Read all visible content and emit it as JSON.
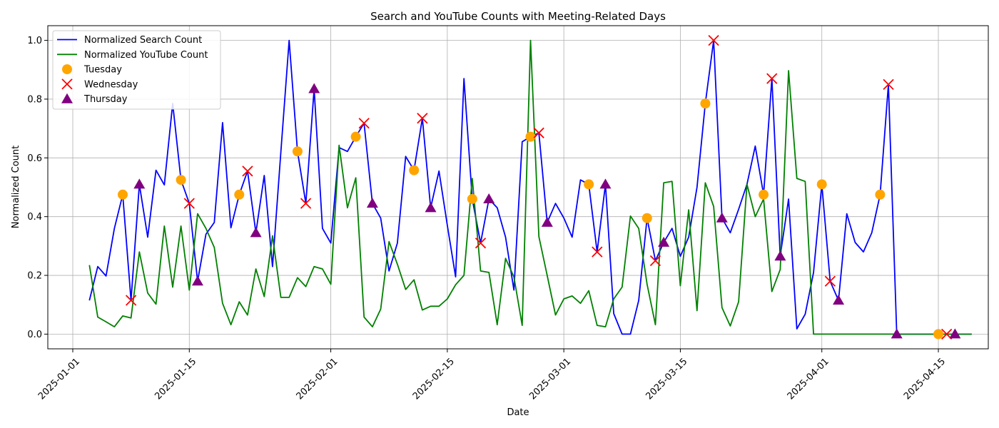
{
  "chart_data": {
    "type": "line",
    "title": "Search and YouTube Counts with Meeting-Related Days",
    "xlabel": "Date",
    "ylabel": "Normalized Count",
    "x_range": [
      "2024-12-29",
      "2025-04-21"
    ],
    "ylim": [
      -0.05,
      1.05
    ],
    "grid": true,
    "legend_position": "top-left",
    "x_ticks": [
      "2025-01-01",
      "2025-01-15",
      "2025-02-01",
      "2025-02-15",
      "2025-03-01",
      "2025-03-15",
      "2025-04-01",
      "2025-04-15"
    ],
    "y_ticks": [
      0.0,
      0.2,
      0.4,
      0.6,
      0.8,
      1.0
    ],
    "y_tick_labels": [
      "0.0",
      "0.2",
      "0.4",
      "0.6",
      "0.8",
      "1.0"
    ],
    "series": [
      {
        "name": "Normalized Search Count",
        "kind": "line",
        "color": "#0000ff",
        "start_date": "2025-01-03",
        "values": [
          0.115,
          0.23,
          0.198,
          0.36,
          0.475,
          0.115,
          0.51,
          0.33,
          0.558,
          0.508,
          0.785,
          0.525,
          0.445,
          0.18,
          0.34,
          0.38,
          0.72,
          0.362,
          0.475,
          0.555,
          0.345,
          0.54,
          0.23,
          0.62,
          1.0,
          0.622,
          0.445,
          0.835,
          0.36,
          0.31,
          0.635,
          0.622,
          0.672,
          0.718,
          0.445,
          0.395,
          0.215,
          0.31,
          0.605,
          0.558,
          0.735,
          0.43,
          0.555,
          0.37,
          0.195,
          0.87,
          0.46,
          0.31,
          0.46,
          0.43,
          0.33,
          0.15,
          0.655,
          0.672,
          0.685,
          0.38,
          0.445,
          0.395,
          0.33,
          0.525,
          0.51,
          0.28,
          0.51,
          0.07,
          0.0,
          0.0,
          0.115,
          0.395,
          0.25,
          0.312,
          0.36,
          0.265,
          0.33,
          0.5,
          0.785,
          1.0,
          0.395,
          0.345,
          0.425,
          0.51,
          0.64,
          0.475,
          0.87,
          0.265,
          0.46,
          0.018,
          0.068,
          0.21,
          0.51,
          0.18,
          0.115,
          0.41,
          0.312,
          0.28,
          0.345,
          0.475,
          0.85,
          0.0,
          0.0,
          0.0,
          0.0,
          0.0,
          0.0,
          0.0,
          0.0,
          0.0,
          0.0
        ]
      },
      {
        "name": "Normalized YouTube Count",
        "kind": "line",
        "color": "#008000",
        "start_date": "2025-01-03",
        "values": [
          0.235,
          0.058,
          0.042,
          0.025,
          0.062,
          0.055,
          0.28,
          0.14,
          0.102,
          0.368,
          0.16,
          0.368,
          0.15,
          0.41,
          0.36,
          0.295,
          0.105,
          0.032,
          0.11,
          0.065,
          0.222,
          0.128,
          0.335,
          0.125,
          0.125,
          0.192,
          0.162,
          0.23,
          0.222,
          0.17,
          0.643,
          0.43,
          0.532,
          0.058,
          0.025,
          0.085,
          0.315,
          0.238,
          0.152,
          0.185,
          0.082,
          0.095,
          0.095,
          0.12,
          0.168,
          0.2,
          0.53,
          0.215,
          0.21,
          0.032,
          0.258,
          0.195,
          0.03,
          1.0,
          0.332,
          0.2,
          0.065,
          0.12,
          0.13,
          0.105,
          0.148,
          0.03,
          0.025,
          0.12,
          0.16,
          0.402,
          0.36,
          0.17,
          0.032,
          0.515,
          0.52,
          0.165,
          0.423,
          0.08,
          0.515,
          0.435,
          0.09,
          0.028,
          0.11,
          0.51,
          0.4,
          0.46,
          0.145,
          0.22,
          0.897,
          0.53,
          0.52,
          0.0,
          0.0,
          0.0,
          0.0,
          0.0,
          0.0,
          0.0,
          0.0,
          0.0,
          0.0,
          0.0,
          0.0,
          0.0,
          0.0,
          0.0,
          0.0,
          0.0,
          0.0,
          0.0,
          0.0
        ]
      },
      {
        "name": "Tuesday",
        "kind": "scatter",
        "marker": "circle",
        "color": "#ffa500",
        "points": [
          {
            "date": "2025-01-07",
            "value": 0.475
          },
          {
            "date": "2025-01-14",
            "value": 0.525
          },
          {
            "date": "2025-01-21",
            "value": 0.475
          },
          {
            "date": "2025-01-28",
            "value": 0.622
          },
          {
            "date": "2025-02-04",
            "value": 0.672
          },
          {
            "date": "2025-02-11",
            "value": 0.558
          },
          {
            "date": "2025-02-18",
            "value": 0.46
          },
          {
            "date": "2025-02-25",
            "value": 0.672
          },
          {
            "date": "2025-03-04",
            "value": 0.51
          },
          {
            "date": "2025-03-11",
            "value": 0.395
          },
          {
            "date": "2025-03-18",
            "value": 0.785
          },
          {
            "date": "2025-03-25",
            "value": 0.475
          },
          {
            "date": "2025-04-01",
            "value": 0.51
          },
          {
            "date": "2025-04-08",
            "value": 0.475
          },
          {
            "date": "2025-04-15",
            "value": 0.0
          }
        ]
      },
      {
        "name": "Wednesday",
        "kind": "scatter",
        "marker": "x",
        "color": "#ff0000",
        "points": [
          {
            "date": "2025-01-08",
            "value": 0.115
          },
          {
            "date": "2025-01-15",
            "value": 0.445
          },
          {
            "date": "2025-01-22",
            "value": 0.555
          },
          {
            "date": "2025-01-29",
            "value": 0.445
          },
          {
            "date": "2025-02-05",
            "value": 0.718
          },
          {
            "date": "2025-02-12",
            "value": 0.735
          },
          {
            "date": "2025-02-19",
            "value": 0.31
          },
          {
            "date": "2025-02-26",
            "value": 0.685
          },
          {
            "date": "2025-03-05",
            "value": 0.28
          },
          {
            "date": "2025-03-12",
            "value": 0.25
          },
          {
            "date": "2025-03-19",
            "value": 1.0
          },
          {
            "date": "2025-03-26",
            "value": 0.87
          },
          {
            "date": "2025-04-02",
            "value": 0.18
          },
          {
            "date": "2025-04-09",
            "value": 0.85
          },
          {
            "date": "2025-04-16",
            "value": 0.0
          }
        ]
      },
      {
        "name": "Thursday",
        "kind": "scatter",
        "marker": "triangle",
        "color": "#800080",
        "points": [
          {
            "date": "2025-01-09",
            "value": 0.51
          },
          {
            "date": "2025-01-16",
            "value": 0.18
          },
          {
            "date": "2025-01-23",
            "value": 0.345
          },
          {
            "date": "2025-01-30",
            "value": 0.835
          },
          {
            "date": "2025-02-06",
            "value": 0.445
          },
          {
            "date": "2025-02-13",
            "value": 0.43
          },
          {
            "date": "2025-02-20",
            "value": 0.46
          },
          {
            "date": "2025-02-27",
            "value": 0.38
          },
          {
            "date": "2025-03-06",
            "value": 0.51
          },
          {
            "date": "2025-03-13",
            "value": 0.312
          },
          {
            "date": "2025-03-20",
            "value": 0.395
          },
          {
            "date": "2025-03-27",
            "value": 0.265
          },
          {
            "date": "2025-04-03",
            "value": 0.115
          },
          {
            "date": "2025-04-10",
            "value": 0.0
          },
          {
            "date": "2025-04-17",
            "value": 0.0
          }
        ]
      }
    ]
  }
}
